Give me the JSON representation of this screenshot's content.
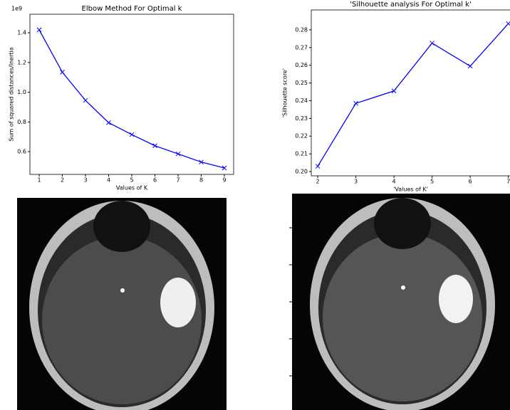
{
  "chart_data": [
    {
      "type": "line",
      "title": "Elbow Method For Optimal k",
      "xlabel": "Values of K",
      "ylabel": "Sum of squared distances/Inertia",
      "y_offset_label": "1e9",
      "x": [
        1,
        2,
        3,
        4,
        5,
        6,
        7,
        8,
        9
      ],
      "values": [
        1.42,
        1.135,
        0.945,
        0.795,
        0.715,
        0.64,
        0.585,
        0.53,
        0.49
      ],
      "color": "#0000ff",
      "marker": "x",
      "xlim": [
        0.6,
        9.4
      ],
      "ylim": [
        0.447,
        1.525
      ],
      "xticks": [
        1,
        2,
        3,
        4,
        5,
        6,
        7,
        8,
        9
      ],
      "yticks": [
        0.6,
        0.8,
        {
          "value": 1,
          "label": "1.0"
        },
        1.2,
        1.4
      ]
    },
    {
      "type": "line",
      "title": "'Silhouette analysis For Optimal k'",
      "xlabel": "'Values of K'",
      "ylabel": "'Silhouette score'",
      "x": [
        2,
        3,
        4,
        5,
        6,
        7
      ],
      "values": [
        0.203,
        0.2385,
        0.2455,
        0.2725,
        0.2595,
        0.2835
      ],
      "color": "#0000ff",
      "marker": "x",
      "xlim": [
        1.83,
        7.25
      ],
      "ylim": [
        0.1976,
        0.2912
      ],
      "xticks": [
        2,
        3,
        4,
        5,
        6,
        7
      ],
      "yticks": [
        {
          "value": 0.2,
          "label": "0.20"
        },
        0.21,
        0.22,
        0.23,
        0.24,
        0.25,
        0.26,
        0.27,
        0.28
      ]
    }
  ]
}
